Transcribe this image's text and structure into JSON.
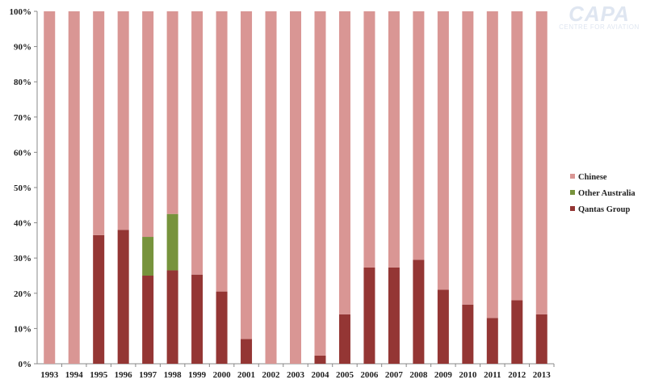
{
  "logo": {
    "name": "CAPA",
    "subtitle": "CENTRE FOR AVIATION"
  },
  "chart_data": {
    "type": "bar",
    "stacked": true,
    "title": "",
    "xlabel": "",
    "ylabel": "",
    "ylim": [
      0,
      100
    ],
    "y_ticks": [
      "0%",
      "10%",
      "20%",
      "30%",
      "40%",
      "50%",
      "60%",
      "70%",
      "80%",
      "90%",
      "100%"
    ],
    "grid": false,
    "legend_position": "right",
    "categories": [
      "1993",
      "1994",
      "1995",
      "1996",
      "1997",
      "1998",
      "1999",
      "2000",
      "2001",
      "2002",
      "2003",
      "2004",
      "2005",
      "2006",
      "2007",
      "2008",
      "2009",
      "2010",
      "2011",
      "2012",
      "2013"
    ],
    "series": [
      {
        "name": "Qantas Group",
        "color": "#943634",
        "values": [
          0,
          0,
          36.5,
          38,
          25,
          26.5,
          25.3,
          20.5,
          7,
          0,
          0,
          2.3,
          14,
          27.3,
          27.3,
          29.5,
          21,
          16.8,
          13,
          18,
          14
        ]
      },
      {
        "name": "Other Australia",
        "color": "#77933c",
        "values": [
          0,
          0,
          0,
          0,
          11,
          16,
          0,
          0,
          0,
          0,
          0,
          0,
          0,
          0,
          0,
          0,
          0,
          0,
          0,
          0,
          0
        ]
      },
      {
        "name": "Chinese",
        "color": "#d99694",
        "values": [
          100,
          100,
          63.5,
          62,
          64,
          57.5,
          74.7,
          79.5,
          93,
          100,
          100,
          97.7,
          86,
          72.7,
          72.7,
          70.5,
          79,
          83.2,
          87,
          82,
          86
        ]
      }
    ],
    "legend_order": [
      "Chinese",
      "Other Australia",
      "Qantas Group"
    ]
  }
}
